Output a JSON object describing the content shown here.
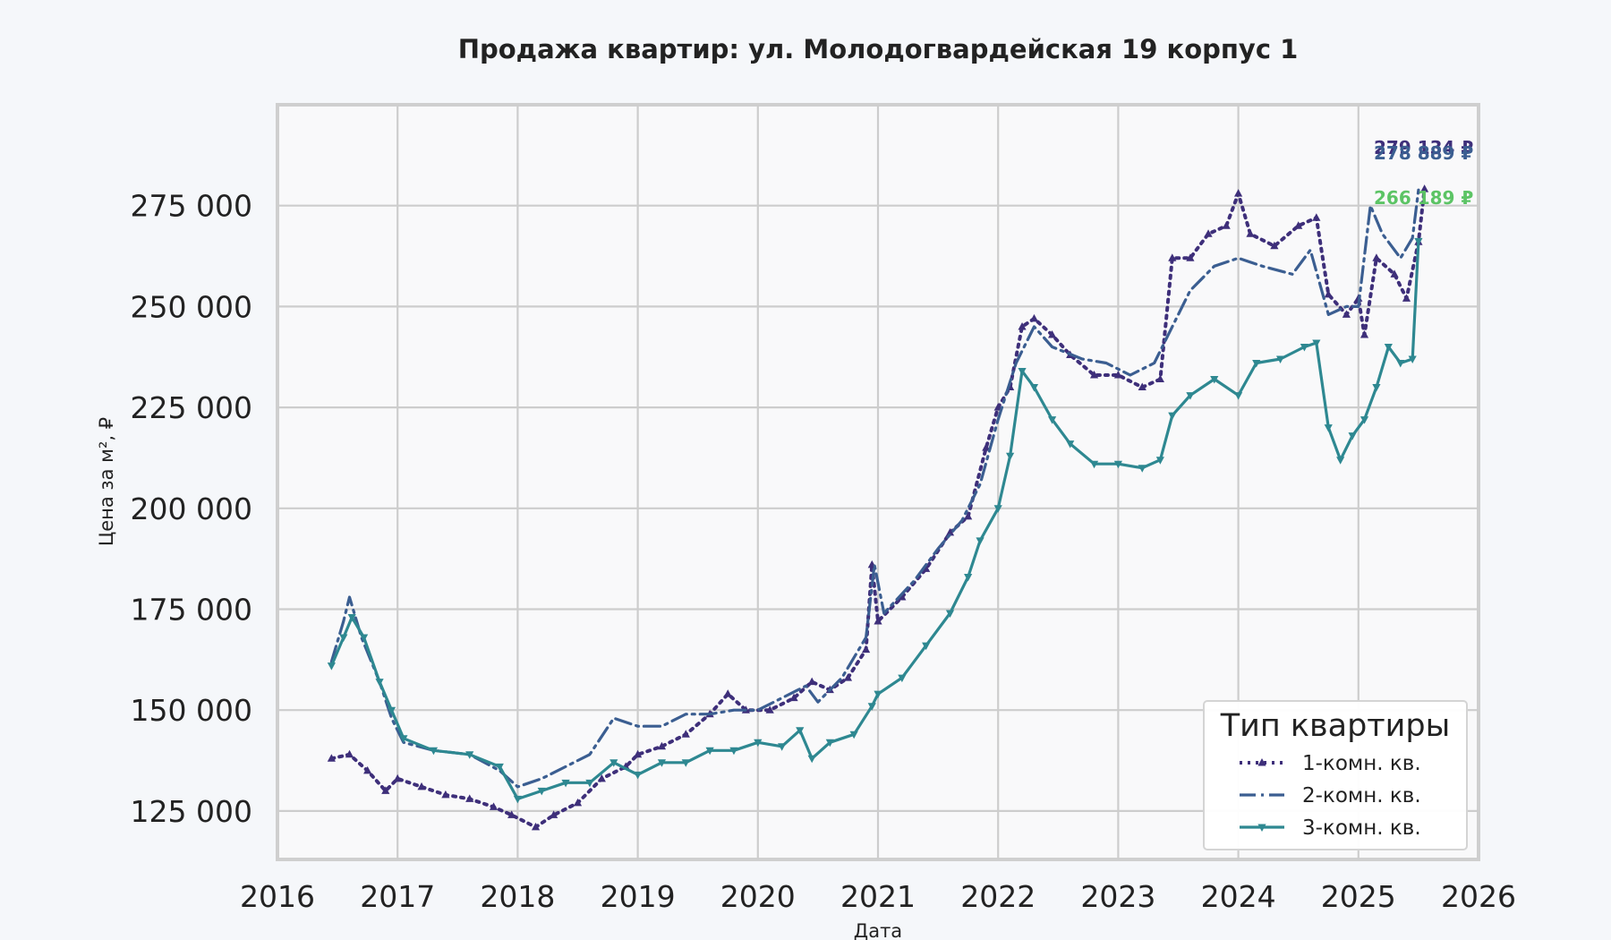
{
  "chart_data": {
    "type": "line",
    "title": "Продажа квартир: ул. Молодогвардейская 19 корпус 1",
    "xlabel": "Дата",
    "ylabel": "Цена за м², ₽",
    "xlim": [
      2016,
      2026
    ],
    "ylim": [
      113000,
      300000
    ],
    "x_ticks": [
      2016,
      2017,
      2018,
      2019,
      2020,
      2021,
      2022,
      2023,
      2024,
      2025,
      2026
    ],
    "y_ticks": [
      125000,
      150000,
      175000,
      200000,
      225000,
      250000,
      275000
    ],
    "y_tick_labels": [
      "125 000",
      "150 000",
      "175 000",
      "200 000",
      "225 000",
      "250 000",
      "275 000"
    ],
    "grid": true,
    "legend": {
      "title": "Тип квартиры",
      "placement": "bottom-right"
    },
    "series": [
      {
        "name": "1-комн. кв.",
        "color": "#3e2f7a",
        "style": "dotted",
        "marker": "triangle-up",
        "end_label": "279 134 ₽",
        "points": [
          [
            2016.45,
            138000
          ],
          [
            2016.6,
            139000
          ],
          [
            2016.75,
            135000
          ],
          [
            2016.9,
            130000
          ],
          [
            2017.0,
            133000
          ],
          [
            2017.2,
            131000
          ],
          [
            2017.4,
            129000
          ],
          [
            2017.6,
            128000
          ],
          [
            2017.8,
            126000
          ],
          [
            2017.95,
            124000
          ],
          [
            2018.15,
            121000
          ],
          [
            2018.3,
            124000
          ],
          [
            2018.5,
            127000
          ],
          [
            2018.7,
            133000
          ],
          [
            2018.9,
            136000
          ],
          [
            2019.0,
            139000
          ],
          [
            2019.2,
            141000
          ],
          [
            2019.4,
            144000
          ],
          [
            2019.6,
            149000
          ],
          [
            2019.75,
            154000
          ],
          [
            2019.9,
            150000
          ],
          [
            2020.1,
            150000
          ],
          [
            2020.3,
            153000
          ],
          [
            2020.45,
            157000
          ],
          [
            2020.6,
            155000
          ],
          [
            2020.75,
            158000
          ],
          [
            2020.9,
            165000
          ],
          [
            2020.95,
            186000
          ],
          [
            2021.0,
            172000
          ],
          [
            2021.2,
            178000
          ],
          [
            2021.4,
            185000
          ],
          [
            2021.6,
            194000
          ],
          [
            2021.75,
            198000
          ],
          [
            2021.9,
            215000
          ],
          [
            2022.0,
            225000
          ],
          [
            2022.1,
            230000
          ],
          [
            2022.2,
            245000
          ],
          [
            2022.3,
            247000
          ],
          [
            2022.45,
            243000
          ],
          [
            2022.6,
            238000
          ],
          [
            2022.8,
            233000
          ],
          [
            2023.0,
            233000
          ],
          [
            2023.2,
            230000
          ],
          [
            2023.35,
            232000
          ],
          [
            2023.45,
            262000
          ],
          [
            2023.6,
            262000
          ],
          [
            2023.75,
            268000
          ],
          [
            2023.9,
            270000
          ],
          [
            2024.0,
            278000
          ],
          [
            2024.1,
            268000
          ],
          [
            2024.3,
            265000
          ],
          [
            2024.5,
            270000
          ],
          [
            2024.65,
            272000
          ],
          [
            2024.75,
            253000
          ],
          [
            2024.9,
            248000
          ],
          [
            2025.0,
            252000
          ],
          [
            2025.05,
            243000
          ],
          [
            2025.15,
            262000
          ],
          [
            2025.3,
            258000
          ],
          [
            2025.4,
            252000
          ],
          [
            2025.5,
            266000
          ],
          [
            2025.55,
            279134
          ]
        ]
      },
      {
        "name": "2-комн. кв.",
        "color": "#3b5e91",
        "style": "dashdot",
        "marker": "none",
        "end_label": "278 889 ₽",
        "points": [
          [
            2016.45,
            162000
          ],
          [
            2016.55,
            172000
          ],
          [
            2016.6,
            178000
          ],
          [
            2016.7,
            168000
          ],
          [
            2016.85,
            157000
          ],
          [
            2016.95,
            148000
          ],
          [
            2017.05,
            142000
          ],
          [
            2017.3,
            140000
          ],
          [
            2017.6,
            139000
          ],
          [
            2017.85,
            135000
          ],
          [
            2018.0,
            131000
          ],
          [
            2018.2,
            133000
          ],
          [
            2018.4,
            136000
          ],
          [
            2018.6,
            139000
          ],
          [
            2018.8,
            148000
          ],
          [
            2019.0,
            146000
          ],
          [
            2019.2,
            146000
          ],
          [
            2019.4,
            149000
          ],
          [
            2019.6,
            149000
          ],
          [
            2019.8,
            150000
          ],
          [
            2020.0,
            150000
          ],
          [
            2020.2,
            153000
          ],
          [
            2020.4,
            156000
          ],
          [
            2020.5,
            152000
          ],
          [
            2020.7,
            158000
          ],
          [
            2020.9,
            168000
          ],
          [
            2020.97,
            186000
          ],
          [
            2021.05,
            174000
          ],
          [
            2021.3,
            182000
          ],
          [
            2021.5,
            190000
          ],
          [
            2021.7,
            197000
          ],
          [
            2021.85,
            206000
          ],
          [
            2022.0,
            222000
          ],
          [
            2022.15,
            236000
          ],
          [
            2022.3,
            245000
          ],
          [
            2022.45,
            240000
          ],
          [
            2022.7,
            237000
          ],
          [
            2022.9,
            236000
          ],
          [
            2023.1,
            233000
          ],
          [
            2023.3,
            236000
          ],
          [
            2023.45,
            245000
          ],
          [
            2023.6,
            254000
          ],
          [
            2023.8,
            260000
          ],
          [
            2024.0,
            262000
          ],
          [
            2024.2,
            260000
          ],
          [
            2024.45,
            258000
          ],
          [
            2024.6,
            264000
          ],
          [
            2024.75,
            248000
          ],
          [
            2024.9,
            250000
          ],
          [
            2025.0,
            250000
          ],
          [
            2025.1,
            275000
          ],
          [
            2025.2,
            268000
          ],
          [
            2025.35,
            262000
          ],
          [
            2025.45,
            267000
          ],
          [
            2025.5,
            278889
          ]
        ]
      },
      {
        "name": "3-комн. кв.",
        "color": "#2e8891",
        "style": "solid",
        "marker": "triangle-down",
        "end_label": "266 189 ₽",
        "points": [
          [
            2016.45,
            161000
          ],
          [
            2016.55,
            168000
          ],
          [
            2016.62,
            173000
          ],
          [
            2016.72,
            168000
          ],
          [
            2016.85,
            157000
          ],
          [
            2016.95,
            150000
          ],
          [
            2017.05,
            143000
          ],
          [
            2017.3,
            140000
          ],
          [
            2017.6,
            139000
          ],
          [
            2017.85,
            136000
          ],
          [
            2018.0,
            128000
          ],
          [
            2018.2,
            130000
          ],
          [
            2018.4,
            132000
          ],
          [
            2018.6,
            132000
          ],
          [
            2018.8,
            137000
          ],
          [
            2019.0,
            134000
          ],
          [
            2019.2,
            137000
          ],
          [
            2019.4,
            137000
          ],
          [
            2019.6,
            140000
          ],
          [
            2019.8,
            140000
          ],
          [
            2020.0,
            142000
          ],
          [
            2020.2,
            141000
          ],
          [
            2020.35,
            145000
          ],
          [
            2020.45,
            138000
          ],
          [
            2020.6,
            142000
          ],
          [
            2020.8,
            144000
          ],
          [
            2020.95,
            151000
          ],
          [
            2021.0,
            154000
          ],
          [
            2021.2,
            158000
          ],
          [
            2021.4,
            166000
          ],
          [
            2021.6,
            174000
          ],
          [
            2021.75,
            183000
          ],
          [
            2021.85,
            192000
          ],
          [
            2022.0,
            200000
          ],
          [
            2022.1,
            213000
          ],
          [
            2022.2,
            234000
          ],
          [
            2022.3,
            230000
          ],
          [
            2022.45,
            222000
          ],
          [
            2022.6,
            216000
          ],
          [
            2022.8,
            211000
          ],
          [
            2023.0,
            211000
          ],
          [
            2023.2,
            210000
          ],
          [
            2023.35,
            212000
          ],
          [
            2023.45,
            223000
          ],
          [
            2023.6,
            228000
          ],
          [
            2023.8,
            232000
          ],
          [
            2024.0,
            228000
          ],
          [
            2024.15,
            236000
          ],
          [
            2024.35,
            237000
          ],
          [
            2024.55,
            240000
          ],
          [
            2024.65,
            241000
          ],
          [
            2024.75,
            220000
          ],
          [
            2024.85,
            212000
          ],
          [
            2024.95,
            218000
          ],
          [
            2025.05,
            222000
          ],
          [
            2025.15,
            230000
          ],
          [
            2025.25,
            240000
          ],
          [
            2025.35,
            236000
          ],
          [
            2025.45,
            237000
          ],
          [
            2025.5,
            266189
          ]
        ]
      }
    ]
  }
}
